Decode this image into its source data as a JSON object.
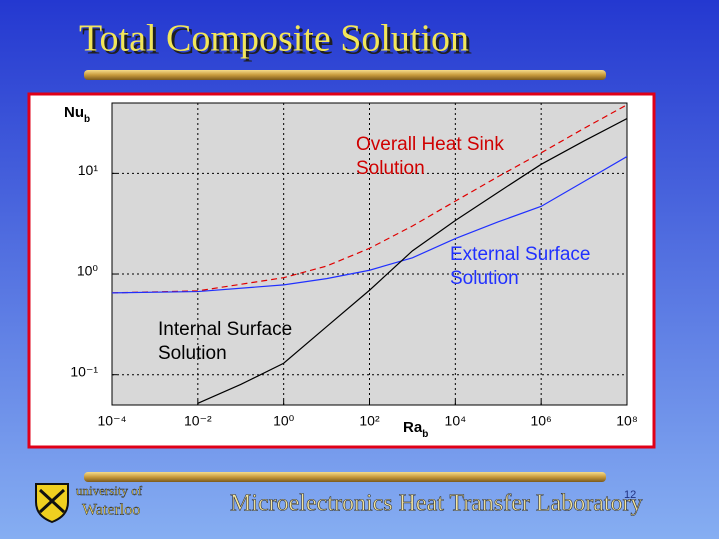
{
  "slide": {
    "title": "Total Composite Solution",
    "university": [
      "university of",
      "Waterloo"
    ],
    "lab": "Microelectronics Heat Transfer Laboratory",
    "page_number": "12"
  },
  "chart_data": {
    "type": "line",
    "log_x": true,
    "log_y": true,
    "grid": true,
    "ylabel": "Nu",
    "ylabel_subscript": "b",
    "xlabel": "Ra",
    "xlabel_subscript": "b",
    "xlim": [
      0.0001,
      100000000
    ],
    "ylim": [
      0.05,
      50
    ],
    "xticks": [
      {
        "value": 0.0001,
        "label": "10⁻⁴"
      },
      {
        "value": 0.01,
        "label": "10⁻²"
      },
      {
        "value": 1,
        "label": "10⁰"
      },
      {
        "value": 100,
        "label": "10²"
      },
      {
        "value": 10000,
        "label": "10⁴"
      },
      {
        "value": 1000000,
        "label": "10⁶"
      },
      {
        "value": 100000000,
        "label": "10⁸"
      }
    ],
    "yticks": [
      {
        "value": 0.1,
        "label": "10⁻¹"
      },
      {
        "value": 1,
        "label": "10⁰"
      },
      {
        "value": 10,
        "label": "10¹"
      }
    ],
    "annotations": [
      [
        "Overall Heat Sink",
        "Solution"
      ],
      [
        "External Surface",
        "Solution"
      ],
      [
        "Internal Surface",
        "Solution"
      ]
    ],
    "series": [
      {
        "name": "Overall Heat Sink Solution",
        "color": "#e00000",
        "dashed": true,
        "x": [
          0.0001,
          0.01,
          1,
          10,
          100,
          1000,
          10000,
          100000,
          1000000,
          10000000,
          100000000
        ],
        "values": [
          0.65,
          0.68,
          0.92,
          1.2,
          1.8,
          3.0,
          5.3,
          9.3,
          16,
          28,
          48
        ]
      },
      {
        "name": "External Surface Solution",
        "color": "#2030ff",
        "dashed": false,
        "x": [
          0.0001,
          0.01,
          1,
          10,
          100,
          1000,
          10000,
          100000,
          1000000,
          10000000,
          100000000
        ],
        "values": [
          0.65,
          0.67,
          0.78,
          0.9,
          1.09,
          1.45,
          2.25,
          3.3,
          4.7,
          8.3,
          14.7
        ]
      },
      {
        "name": "Internal Surface Solution",
        "color": "#000000",
        "dashed": false,
        "x": [
          0.01,
          0.1,
          1,
          10,
          100,
          1000,
          10000,
          100000,
          1000000,
          10000000,
          100000000
        ],
        "values": [
          0.052,
          0.08,
          0.13,
          0.3,
          0.69,
          1.7,
          3.4,
          6.5,
          12.3,
          21,
          35
        ]
      }
    ]
  }
}
